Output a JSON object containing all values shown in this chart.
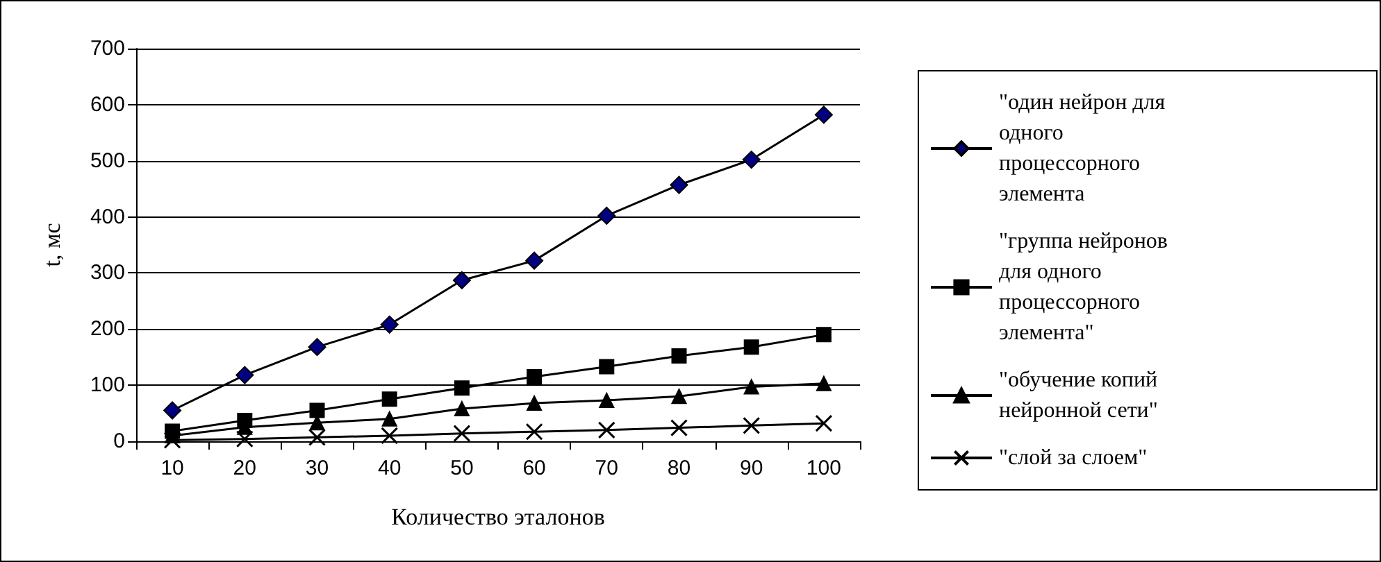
{
  "chart_data": {
    "type": "line",
    "xlabel": "Количество эталонов",
    "ylabel": "t, мс",
    "categories": [
      "10",
      "20",
      "30",
      "40",
      "50",
      "60",
      "70",
      "80",
      "90",
      "100"
    ],
    "series": [
      {
        "name": "\"один нейрон для одного процессорного элемента",
        "color": "#000080",
        "marker": "diamond",
        "values": [
          55,
          118,
          168,
          208,
          287,
          322,
          402,
          457,
          502,
          582
        ]
      },
      {
        "name": "\"группа нейронов для одного процессорного элемента\"",
        "color": "#000000",
        "marker": "square",
        "values": [
          18,
          37,
          55,
          75,
          95,
          115,
          133,
          152,
          168,
          190
        ]
      },
      {
        "name": "\"обучение копий нейронной сети\"",
        "color": "#000000",
        "marker": "triangle",
        "values": [
          10,
          25,
          33,
          40,
          58,
          68,
          73,
          80,
          97,
          103
        ]
      },
      {
        "name": "\"слой за слоем\"",
        "color": "#000000",
        "marker": "cross",
        "values": [
          2,
          4,
          7,
          10,
          14,
          17,
          20,
          24,
          28,
          32
        ]
      }
    ],
    "ylim": [
      0,
      700
    ],
    "yticks": [
      0,
      100,
      200,
      300,
      400,
      500,
      600,
      700
    ],
    "grid": "y",
    "legend": "right",
    "line_style": "solid"
  }
}
